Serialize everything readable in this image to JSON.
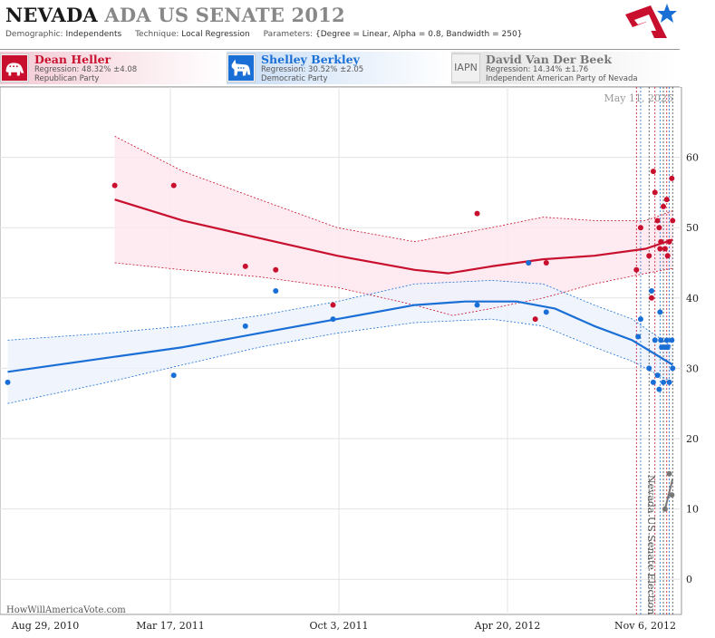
{
  "header": {
    "state": "NEVADA",
    "title_rest": "ADA US SENATE 2012",
    "demographic_label": "Demographic:",
    "demographic": "Independents",
    "technique_label": "Technique:",
    "technique": "Local Regression",
    "parameters_label": "Parameters:",
    "parameters": "{Degree = Linear, Alpha = 0.8, Bandwidth = 250}"
  },
  "candidates": [
    {
      "name": "Dean Heller",
      "regression": "Regression: 48.32% ±4.08",
      "party": "Republican Party",
      "badge": "elephant-icon",
      "color": "#c8102e"
    },
    {
      "name": "Shelley Berkley",
      "regression": "Regression: 30.52% ±2.05",
      "party": "Democratic Party",
      "badge": "donkey-icon",
      "color": "#1a6fd6"
    },
    {
      "name": "David Van Der Beek",
      "regression": "Regression: 14.34% ±1.76",
      "party": "Independent American Party  of Nevada",
      "badge_text": "IAPN",
      "color": "#777777"
    }
  ],
  "date_stamp": "May 11, 2025",
  "election_label": "Nevada US Senate Election",
  "watermark": "HowWillAmericaVote.com",
  "chart_data": {
    "type": "scatter",
    "x_ticks": [
      "Aug 29, 2010",
      "Mar 17, 2011",
      "Oct 3, 2011",
      "Apr 20, 2012",
      "Nov 6, 2012"
    ],
    "xlim": [
      "2010-08-29",
      "2012-11-06"
    ],
    "ylim": [
      -5,
      70
    ],
    "y_ticks": [
      0,
      10,
      20,
      30,
      40,
      50,
      60
    ],
    "grid": true,
    "event_date": "2012-11-06",
    "series": [
      {
        "name": "Dean Heller",
        "color": "#c8102e",
        "band_fill": "#fde8ee",
        "points": [
          [
            "2011-01-10",
            56
          ],
          [
            "2011-03-21",
            56
          ],
          [
            "2011-06-14",
            44.5
          ],
          [
            "2011-07-20",
            44
          ],
          [
            "2011-09-26",
            39
          ],
          [
            "2012-03-15",
            52
          ],
          [
            "2012-05-15",
            45
          ],
          [
            "2012-05-23",
            37
          ],
          [
            "2012-06-05",
            45
          ],
          [
            "2012-09-20",
            44
          ],
          [
            "2012-09-25",
            50
          ],
          [
            "2012-10-05",
            46
          ],
          [
            "2012-10-08",
            40
          ],
          [
            "2012-10-10",
            58
          ],
          [
            "2012-10-12",
            55
          ],
          [
            "2012-10-15",
            51
          ],
          [
            "2012-10-17",
            50
          ],
          [
            "2012-10-18",
            47
          ],
          [
            "2012-10-19",
            48
          ],
          [
            "2012-10-22",
            53
          ],
          [
            "2012-10-24",
            47
          ],
          [
            "2012-10-26",
            54
          ],
          [
            "2012-10-27",
            46
          ],
          [
            "2012-10-29",
            48
          ],
          [
            "2012-11-01",
            57
          ],
          [
            "2012-11-02",
            51
          ]
        ],
        "fit": [
          [
            "2011-01-10",
            54
          ],
          [
            "2011-04-01",
            51
          ],
          [
            "2011-07-01",
            48.5
          ],
          [
            "2011-10-01",
            46
          ],
          [
            "2012-01-01",
            44
          ],
          [
            "2012-02-10",
            43.5
          ],
          [
            "2012-04-01",
            44.5
          ],
          [
            "2012-06-01",
            45.5
          ],
          [
            "2012-08-01",
            46
          ],
          [
            "2012-10-01",
            47
          ],
          [
            "2012-11-02",
            48.3
          ]
        ],
        "upper": [
          [
            "2011-01-10",
            63
          ],
          [
            "2011-04-01",
            58
          ],
          [
            "2011-07-01",
            54
          ],
          [
            "2011-10-01",
            50
          ],
          [
            "2012-01-01",
            48
          ],
          [
            "2012-04-01",
            50
          ],
          [
            "2012-06-01",
            51.5
          ],
          [
            "2012-08-01",
            51
          ],
          [
            "2012-10-01",
            51
          ],
          [
            "2012-11-02",
            52.4
          ]
        ],
        "lower": [
          [
            "2011-01-10",
            45
          ],
          [
            "2011-04-01",
            44
          ],
          [
            "2011-07-01",
            43
          ],
          [
            "2011-10-01",
            41.5
          ],
          [
            "2012-01-01",
            39
          ],
          [
            "2012-02-15",
            37.5
          ],
          [
            "2012-04-01",
            38.5
          ],
          [
            "2012-06-01",
            40
          ],
          [
            "2012-08-01",
            42
          ],
          [
            "2012-10-01",
            43.5
          ],
          [
            "2012-11-02",
            44.2
          ]
        ]
      },
      {
        "name": "Shelley Berkley",
        "color": "#1a6fd6",
        "band_fill": "#edf2fb",
        "points": [
          [
            "2010-09-05",
            28
          ],
          [
            "2011-03-21",
            29
          ],
          [
            "2011-06-14",
            36
          ],
          [
            "2011-07-20",
            41
          ],
          [
            "2011-09-26",
            37
          ],
          [
            "2012-03-15",
            39
          ],
          [
            "2012-05-15",
            45
          ],
          [
            "2012-06-05",
            38
          ],
          [
            "2012-09-22",
            34.5
          ],
          [
            "2012-09-25",
            37
          ],
          [
            "2012-10-05",
            30
          ],
          [
            "2012-10-08",
            41
          ],
          [
            "2012-10-10",
            28
          ],
          [
            "2012-10-12",
            34
          ],
          [
            "2012-10-15",
            29
          ],
          [
            "2012-10-17",
            27
          ],
          [
            "2012-10-18",
            38
          ],
          [
            "2012-10-19",
            34
          ],
          [
            "2012-10-20",
            33
          ],
          [
            "2012-10-22",
            28
          ],
          [
            "2012-10-24",
            33
          ],
          [
            "2012-10-26",
            34
          ],
          [
            "2012-10-27",
            33
          ],
          [
            "2012-10-29",
            28
          ],
          [
            "2012-11-01",
            34
          ],
          [
            "2012-11-02",
            30
          ]
        ],
        "fit": [
          [
            "2010-09-05",
            29.5
          ],
          [
            "2011-01-01",
            31.5
          ],
          [
            "2011-04-01",
            33
          ],
          [
            "2011-07-01",
            35
          ],
          [
            "2011-10-01",
            37
          ],
          [
            "2012-01-01",
            39
          ],
          [
            "2012-03-01",
            39.5
          ],
          [
            "2012-05-01",
            39.5
          ],
          [
            "2012-06-15",
            38.5
          ],
          [
            "2012-08-01",
            36
          ],
          [
            "2012-09-15",
            34
          ],
          [
            "2012-11-02",
            30.5
          ]
        ],
        "upper": [
          [
            "2010-09-05",
            34
          ],
          [
            "2011-01-01",
            35
          ],
          [
            "2011-04-01",
            36
          ],
          [
            "2011-07-01",
            37.5
          ],
          [
            "2011-10-01",
            39.5
          ],
          [
            "2012-01-01",
            42
          ],
          [
            "2012-04-01",
            42.5
          ],
          [
            "2012-06-01",
            42
          ],
          [
            "2012-08-01",
            39
          ],
          [
            "2012-09-15",
            37
          ],
          [
            "2012-11-02",
            33
          ]
        ],
        "lower": [
          [
            "2010-09-05",
            25
          ],
          [
            "2011-01-01",
            28
          ],
          [
            "2011-04-01",
            30.5
          ],
          [
            "2011-07-01",
            33
          ],
          [
            "2011-10-01",
            35
          ],
          [
            "2012-01-01",
            36.5
          ],
          [
            "2012-04-01",
            37
          ],
          [
            "2012-06-01",
            36
          ],
          [
            "2012-08-01",
            33
          ],
          [
            "2012-09-15",
            31
          ],
          [
            "2012-11-02",
            28
          ]
        ]
      },
      {
        "name": "David Van Der Beek",
        "color": "#777777",
        "band_fill": "#eeeeee",
        "points": [
          [
            "2012-10-24",
            10
          ],
          [
            "2012-10-29",
            15
          ],
          [
            "2012-11-01",
            12
          ]
        ],
        "fit": [
          [
            "2012-10-24",
            10
          ],
          [
            "2012-11-02",
            14.3
          ]
        ],
        "upper": [],
        "lower": []
      }
    ],
    "poll_dates": [
      "2012-09-20",
      "2012-09-25",
      "2012-10-05",
      "2012-10-12",
      "2012-10-18",
      "2012-10-22",
      "2012-10-26",
      "2012-10-29",
      "2012-11-02"
    ]
  }
}
